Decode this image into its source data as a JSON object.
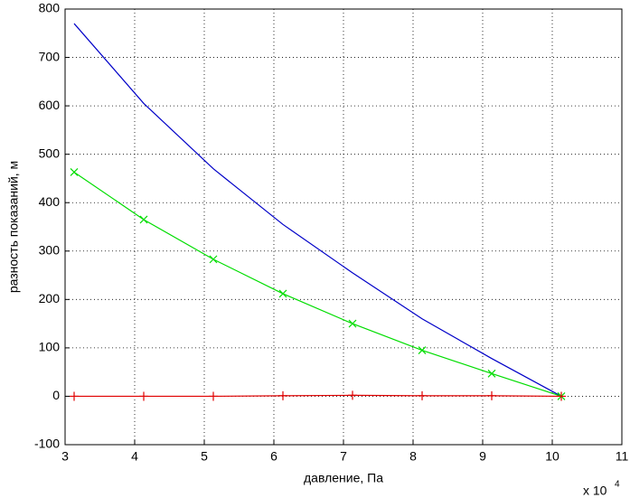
{
  "chart_data": {
    "type": "line",
    "x_label": "давление, Па",
    "y_label": "разность показаний, м",
    "x_scale_base": "x 10",
    "x_scale_exponent": "4",
    "x": [
      3.13,
      4.13,
      5.13,
      6.13,
      7.13,
      8.13,
      9.13,
      10.13
    ],
    "series": [
      {
        "color": "#0000c8",
        "marker": "none",
        "values": [
          770,
          605,
          470,
          355,
          255,
          160,
          78,
          0
        ]
      },
      {
        "color": "#00dd00",
        "marker": "x",
        "values": [
          463,
          365,
          283,
          212,
          150,
          95,
          47,
          0
        ]
      },
      {
        "color": "#e00000",
        "marker": "+",
        "values": [
          0,
          0,
          0,
          1,
          2,
          1,
          1,
          0
        ]
      }
    ],
    "xlim": [
      3,
      11
    ],
    "xticks": [
      3,
      4,
      5,
      6,
      7,
      8,
      9,
      10,
      11
    ],
    "ylim": [
      -100,
      800
    ],
    "yticks": [
      -100,
      0,
      100,
      200,
      300,
      400,
      500,
      600,
      700,
      800
    ],
    "grid": true
  }
}
